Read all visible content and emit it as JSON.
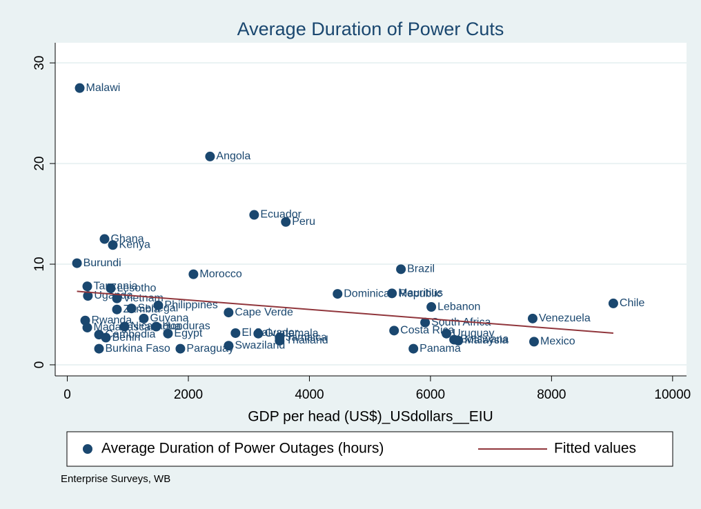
{
  "chart_data": {
    "type": "scatter",
    "title": "Average Duration of Power Cuts",
    "x_label": "GDP per head (US$)_USdollars__EIU",
    "note": "Enterprise Surveys, WB",
    "xlim": [
      -200,
      10230
    ],
    "ylim": [
      -1.1,
      32
    ],
    "xticks": [
      0,
      2000,
      4000,
      6000,
      8000,
      10000
    ],
    "yticks": [
      0,
      10,
      20,
      30
    ],
    "grid": true,
    "series": [
      {
        "name": "Average Duration of Power Outages (hours)",
        "type": "scatter",
        "color": "#1a476f",
        "x": [
          205,
          2358,
          3087,
          3610,
          615,
          752,
          160,
          2084,
          5512,
          330,
          717,
          340,
          820,
          4465,
          5364,
          6014,
          9021,
          1503,
          1060,
          820,
          2665,
          296,
          1264,
          7688,
          5911,
          330,
          1469,
          945,
          524,
          1663,
          638,
          5399,
          6264,
          6390,
          6460,
          2779,
          3155,
          3508,
          3508,
          2665,
          1868,
          524,
          5718,
          7711
        ],
        "values": [
          27.5,
          20.7,
          14.9,
          14.2,
          12.5,
          11.9,
          10.1,
          9.0,
          9.5,
          7.8,
          7.6,
          6.85,
          6.6,
          7.05,
          7.1,
          5.75,
          6.1,
          5.9,
          5.6,
          5.5,
          5.2,
          4.4,
          4.6,
          4.6,
          4.2,
          3.7,
          3.8,
          3.8,
          3.0,
          3.1,
          2.7,
          3.4,
          3.1,
          2.5,
          2.4,
          3.15,
          3.1,
          2.7,
          2.4,
          1.9,
          1.6,
          1.6,
          1.6,
          2.3
        ],
        "labels": [
          "Malawi",
          "Angola",
          "Ecuador",
          "Peru",
          "Ghana",
          "Kenya",
          "Burundi",
          "Morocco",
          "Brazil",
          "Tanzania",
          "Lesotho",
          "Uganda",
          "Vietnam",
          "Dominican Republic",
          "Mauritius",
          "Lebanon",
          "Chile",
          "Philippines",
          "Senegal",
          "Zambia",
          "Cape Verde",
          "Rwanda",
          "Guyana",
          "Venezuela",
          "South Africa",
          "Madagascar",
          "Honduras",
          "Nicaragua",
          "Cambodia",
          "Egypt",
          "Benin",
          "Costa Rica",
          "Uruguay",
          "Botswana",
          "Malaysia",
          "El Salvador",
          "Guatemala",
          "Jamaica",
          "Thailand",
          "Swaziland",
          "Paraguay",
          "Burkina Faso",
          "Panama",
          "Mexico"
        ]
      },
      {
        "name": "Fitted values",
        "type": "line",
        "color": "#90353b",
        "x": [
          160,
          9021
        ],
        "values": [
          7.3,
          3.15
        ]
      }
    ]
  }
}
